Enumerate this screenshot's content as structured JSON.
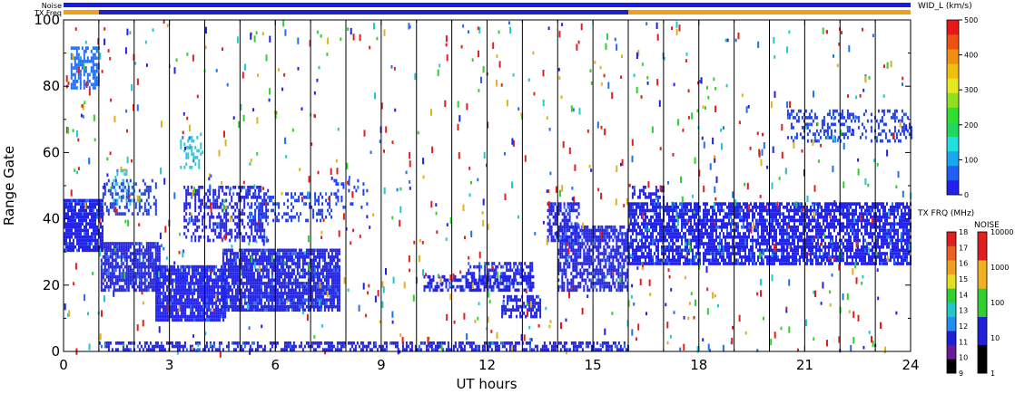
{
  "chart_data": {
    "type": "heatmap",
    "xlabel": "UT hours",
    "ylabel": "Range Gate",
    "xlim": [
      0,
      24
    ],
    "ylim": [
      0,
      100
    ],
    "x_ticks": [
      "0",
      "3",
      "6",
      "9",
      "12",
      "15",
      "18",
      "21",
      "24"
    ],
    "x_tick_values": [
      0,
      3,
      6,
      9,
      12,
      15,
      18,
      21,
      24
    ],
    "y_ticks": [
      "0",
      "20",
      "40",
      "60",
      "80",
      "100"
    ],
    "y_tick_values": [
      0,
      20,
      40,
      60,
      80,
      100
    ],
    "scan_boundaries_ut": [
      1,
      2,
      3,
      4,
      5,
      6,
      7,
      8,
      9,
      10,
      11,
      12,
      13,
      14,
      15,
      16,
      17,
      18,
      19,
      20,
      21,
      22,
      23
    ],
    "top_bars": {
      "noise_label": "Noise",
      "txfreq_label": "TX Freq",
      "noise": [
        {
          "from": 0,
          "to": 24,
          "color": "#1a1ae6"
        }
      ],
      "tx_freq": [
        {
          "from": 0,
          "to": 1,
          "color": "#f0a020"
        },
        {
          "from": 1,
          "to": 16,
          "color": "#2020c8"
        },
        {
          "from": 16,
          "to": 24,
          "color": "#f0a020"
        }
      ]
    },
    "echo_regions": [
      {
        "x0": 0.0,
        "x1": 1.1,
        "y0": 30,
        "y1": 46,
        "color": "#2323ea",
        "density": 0.85
      },
      {
        "x0": 1.05,
        "x1": 2.7,
        "y0": 18,
        "y1": 33,
        "color": "#2323ea",
        "density": 0.8
      },
      {
        "x0": 1.1,
        "x1": 2.6,
        "y0": 42,
        "y1": 52,
        "color": "#2040f0",
        "density": 0.35
      },
      {
        "x0": 2.6,
        "x1": 4.6,
        "y0": 9,
        "y1": 26,
        "color": "#2323ea",
        "density": 0.88
      },
      {
        "x0": 4.5,
        "x1": 7.8,
        "y0": 12,
        "y1": 31,
        "color": "#2323ea",
        "density": 0.85
      },
      {
        "x0": 3.4,
        "x1": 5.8,
        "y0": 33,
        "y1": 50,
        "color": "#2323ea",
        "density": 0.45
      },
      {
        "x0": 5.2,
        "x1": 7.6,
        "y0": 40,
        "y1": 48,
        "color": "#2040f0",
        "density": 0.3
      },
      {
        "x0": 7.6,
        "x1": 8.6,
        "y0": 44,
        "y1": 52,
        "color": "#2040f0",
        "density": 0.25
      },
      {
        "x0": 1.0,
        "x1": 16.0,
        "y0": 0,
        "y1": 3,
        "color": "#2323ea",
        "density": 0.55
      },
      {
        "x0": 10.2,
        "x1": 13.3,
        "y0": 18,
        "y1": 23,
        "color": "#2323ea",
        "density": 0.6
      },
      {
        "x0": 11.4,
        "x1": 13.3,
        "y0": 20,
        "y1": 27,
        "color": "#2323ea",
        "density": 0.55
      },
      {
        "x0": 12.4,
        "x1": 13.5,
        "y0": 10,
        "y1": 17,
        "color": "#2323ea",
        "density": 0.6
      },
      {
        "x0": 13.7,
        "x1": 14.6,
        "y0": 33,
        "y1": 45,
        "color": "#2323ea",
        "density": 0.55
      },
      {
        "x0": 14.0,
        "x1": 16.0,
        "y0": 18,
        "y1": 38,
        "color": "#2323ea",
        "density": 0.7
      },
      {
        "x0": 16.0,
        "x1": 24.0,
        "y0": 26,
        "y1": 45,
        "color": "#2323ea",
        "density": 0.75
      },
      {
        "x0": 16.1,
        "x1": 17.0,
        "y0": 45,
        "y1": 50,
        "color": "#2323ea",
        "density": 0.5
      },
      {
        "x0": 0.2,
        "x1": 1.0,
        "y0": 80,
        "y1": 92,
        "color": "#2070f0",
        "density": 0.55
      },
      {
        "x0": 20.5,
        "x1": 24.0,
        "y0": 64,
        "y1": 73,
        "color": "#2040f0",
        "density": 0.35
      },
      {
        "x0": 3.3,
        "x1": 3.9,
        "y0": 56,
        "y1": 66,
        "color": "#30c8d8",
        "density": 0.25
      },
      {
        "x0": 1.4,
        "x1": 2.0,
        "y0": 45,
        "y1": 55,
        "color": "#30c8d8",
        "density": 0.25
      }
    ],
    "colorbars": [
      {
        "title": "WID_L (km/s)",
        "ticks": [
          "0",
          "100",
          "200",
          "300",
          "400",
          "500"
        ],
        "tick_values": [
          0,
          100,
          200,
          300,
          400,
          500
        ],
        "colors": [
          "#2020f0",
          "#1f60f0",
          "#18a8f0",
          "#20e0e0",
          "#20d860",
          "#30e030",
          "#90e020",
          "#e8e820",
          "#f0c010",
          "#f09010",
          "#f05010",
          "#e81818"
        ]
      },
      {
        "title": "TX FRQ (MHz)",
        "ticks": [
          "9",
          "10",
          "11",
          "12",
          "13",
          "14",
          "15",
          "16",
          "17",
          "18"
        ],
        "tick_values": [
          9,
          10,
          11,
          12,
          13,
          14,
          15,
          16,
          17,
          18
        ],
        "colors": [
          "#000000",
          "#6a1a9a",
          "#2020d8",
          "#2090f0",
          "#20c8c8",
          "#30d030",
          "#e0e020",
          "#f0a020",
          "#f06020",
          "#e02020"
        ]
      },
      {
        "title": "NOISE",
        "ticks": [
          "1",
          "10",
          "100",
          "1000",
          "10000"
        ],
        "tick_values": [
          1,
          10,
          100,
          1000,
          10000
        ],
        "colors": [
          "#000000",
          "#2020d8",
          "#30d030",
          "#f0b020",
          "#e02020"
        ]
      }
    ],
    "scatter_colors": [
      "#e02020",
      "#e02020",
      "#2020e8",
      "#2070f0",
      "#20c8d0",
      "#30d030",
      "#e0b020"
    ]
  }
}
